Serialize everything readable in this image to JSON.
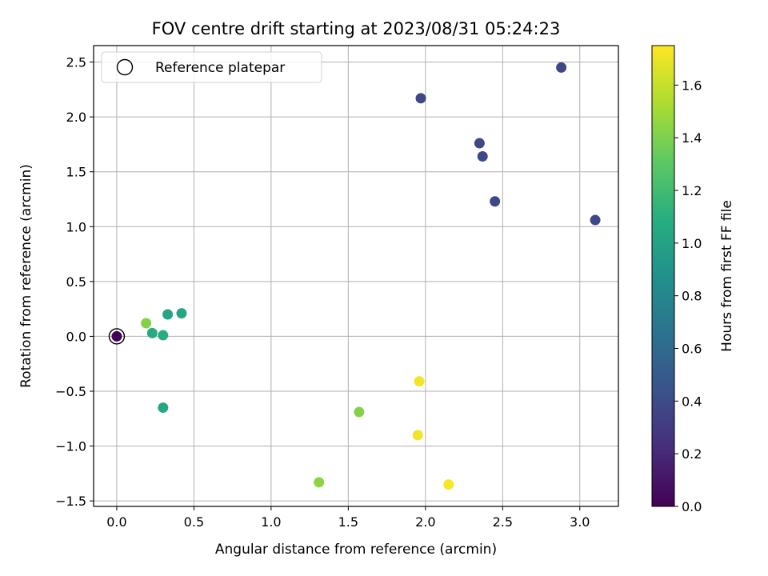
{
  "chart_data": {
    "type": "scatter",
    "title": "FOV centre drift starting at 2023/08/31 05:24:23",
    "xlabel": "Angular distance from reference (arcmin)",
    "ylabel": "Rotation from reference (arcmin)",
    "xlim": [
      -0.15,
      3.25
    ],
    "ylim": [
      -1.55,
      2.65
    ],
    "xticks": [
      0.0,
      0.5,
      1.0,
      1.5,
      2.0,
      2.5,
      3.0
    ],
    "xtick_labels": [
      "0.0",
      "0.5",
      "1.0",
      "1.5",
      "2.0",
      "2.5",
      "3.0"
    ],
    "yticks": [
      -1.5,
      -1.0,
      -0.5,
      0.0,
      0.5,
      1.0,
      1.5,
      2.0,
      2.5
    ],
    "ytick_labels": [
      "−1.5",
      "−1.0",
      "−0.5",
      "0.0",
      "0.5",
      "1.0",
      "1.5",
      "2.0",
      "2.5"
    ],
    "grid": true,
    "legend": {
      "placement": "top-left",
      "entries": [
        "Reference platepar"
      ]
    },
    "colorbar": {
      "label": "Hours from first FF file",
      "range": [
        0.0,
        1.75
      ],
      "ticks": [
        0.0,
        0.2,
        0.4,
        0.6,
        0.8,
        1.0,
        1.2,
        1.4,
        1.6
      ],
      "tick_labels": [
        "0.0",
        "0.2",
        "0.4",
        "0.6",
        "0.8",
        "1.0",
        "1.2",
        "1.4",
        "1.6"
      ],
      "colormap": "viridis"
    },
    "reference": {
      "x": 0.0,
      "y": 0.0
    },
    "points": [
      {
        "x": 0.0,
        "y": 0.0,
        "hours": 0.0
      },
      {
        "x": 1.97,
        "y": 2.17,
        "hours": 0.38
      },
      {
        "x": 2.88,
        "y": 2.45,
        "hours": 0.38
      },
      {
        "x": 2.35,
        "y": 1.76,
        "hours": 0.38
      },
      {
        "x": 2.37,
        "y": 1.64,
        "hours": 0.38
      },
      {
        "x": 2.45,
        "y": 1.23,
        "hours": 0.38
      },
      {
        "x": 3.1,
        "y": 1.06,
        "hours": 0.38
      },
      {
        "x": 0.33,
        "y": 0.2,
        "hours": 1.02
      },
      {
        "x": 0.42,
        "y": 0.21,
        "hours": 1.04
      },
      {
        "x": 0.23,
        "y": 0.03,
        "hours": 1.06
      },
      {
        "x": 0.3,
        "y": 0.01,
        "hours": 1.08
      },
      {
        "x": 0.3,
        "y": -0.65,
        "hours": 1.04
      },
      {
        "x": 0.19,
        "y": 0.12,
        "hours": 1.42
      },
      {
        "x": 1.57,
        "y": -0.69,
        "hours": 1.42
      },
      {
        "x": 1.31,
        "y": -1.33,
        "hours": 1.44
      },
      {
        "x": 1.96,
        "y": -0.41,
        "hours": 1.72
      },
      {
        "x": 1.95,
        "y": -0.9,
        "hours": 1.72
      },
      {
        "x": 2.15,
        "y": -1.35,
        "hours": 1.73
      }
    ]
  }
}
